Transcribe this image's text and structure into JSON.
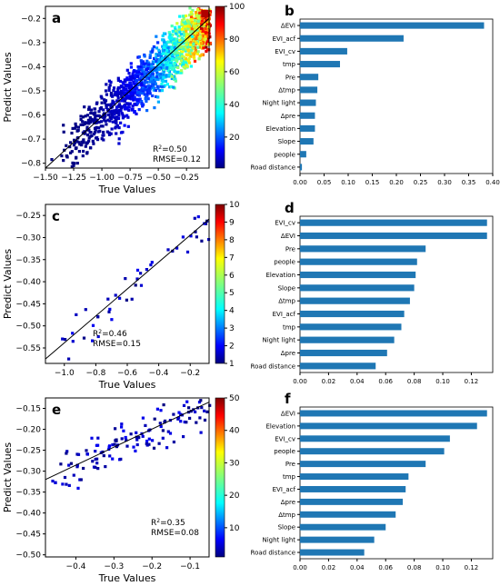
{
  "chart_data": [
    {
      "panel": "a",
      "type": "heatmap",
      "xlabel": "True Values",
      "ylabel": "Predict Values",
      "xlim": [
        -1.5,
        -0.05
      ],
      "ylim": [
        -0.82,
        -0.15
      ],
      "xticks": [
        -1.5,
        -1.25,
        -1.0,
        -0.75,
        -0.5,
        -0.25
      ],
      "xtick_labels": [
        "−1.50",
        "−1.25",
        "−1.00",
        "−0.75",
        "−0.50",
        "−0.25"
      ],
      "yticks": [
        -0.8,
        -0.7,
        -0.6,
        -0.5,
        -0.4,
        -0.3,
        -0.2
      ],
      "ytick_labels": [
        "−0.8",
        "−0.7",
        "−0.6",
        "−0.5",
        "−0.4",
        "−0.3",
        "−0.2"
      ],
      "r2_prefix": "R",
      "r2_sup": "2",
      "r2_value": "=0.50",
      "rmse_text": "RMSE=0.12",
      "fit_line": [
        [
          -1.5,
          -0.82
        ],
        [
          -0.05,
          -0.2
        ]
      ],
      "colorbar_range": [
        1,
        100
      ],
      "colorbar_ticks": [
        20,
        40,
        60,
        80,
        100
      ],
      "density_seed": 11,
      "density_count": 1500
    },
    {
      "panel": "b",
      "type": "bar",
      "categories": [
        "ΔEVI",
        "EVI_acf",
        "EVI_cv",
        "tmp",
        "Pre",
        "Δtmp",
        "Night light",
        "Δpre",
        "Elevation",
        "Slope",
        "people",
        "Road distance"
      ],
      "values": [
        0.382,
        0.215,
        0.098,
        0.083,
        0.038,
        0.036,
        0.033,
        0.031,
        0.031,
        0.028,
        0.013,
        0.004
      ],
      "xlim": [
        0,
        0.4
      ],
      "xticks": [
        0.0,
        0.05,
        0.1,
        0.15,
        0.2,
        0.25,
        0.3,
        0.35,
        0.4
      ],
      "xtick_labels": [
        "0.00",
        "0.05",
        "0.10",
        "0.15",
        "0.20",
        "0.25",
        "0.30",
        "0.35",
        "0.40"
      ],
      "color": "#1f77b4"
    },
    {
      "panel": "c",
      "type": "heatmap",
      "xlabel": "True Values",
      "ylabel": "Predict Values",
      "xlim": [
        -1.12,
        -0.08
      ],
      "ylim": [
        -0.585,
        -0.225
      ],
      "xticks": [
        -1.0,
        -0.8,
        -0.6,
        -0.4,
        -0.2
      ],
      "xtick_labels": [
        "−1.0",
        "−0.8",
        "−0.6",
        "−0.4",
        "−0.2"
      ],
      "yticks": [
        -0.55,
        -0.5,
        -0.45,
        -0.4,
        -0.35,
        -0.3,
        -0.25
      ],
      "ytick_labels": [
        "−0.55",
        "−0.50",
        "−0.45",
        "−0.40",
        "−0.35",
        "−0.30",
        "−0.25"
      ],
      "r2_prefix": "R",
      "r2_sup": "2",
      "r2_value": "=0.46",
      "rmse_text": "RMSE=0.15",
      "fit_line": [
        [
          -1.12,
          -0.575
        ],
        [
          -0.08,
          -0.258
        ]
      ],
      "colorbar_range": [
        1,
        10
      ],
      "colorbar_ticks": [
        1,
        2,
        3,
        4,
        5,
        6,
        7,
        8,
        9,
        10
      ],
      "density_seed": 23,
      "density_count": 45
    },
    {
      "panel": "d",
      "type": "bar",
      "categories": [
        "EVI_cv",
        "ΔEVI",
        "Pre",
        "people",
        "Elevation",
        "Slope",
        "Δtmp",
        "EVI_acf",
        "tmp",
        "Night light",
        "Δpre",
        "Road distance"
      ],
      "values": [
        0.131,
        0.131,
        0.088,
        0.082,
        0.081,
        0.08,
        0.077,
        0.073,
        0.071,
        0.066,
        0.061,
        0.053
      ],
      "xlim": [
        0,
        0.135
      ],
      "xticks": [
        0.0,
        0.02,
        0.04,
        0.06,
        0.08,
        0.1,
        0.12
      ],
      "xtick_labels": [
        "0.00",
        "0.02",
        "0.04",
        "0.06",
        "0.08",
        "0.10",
        "0.12"
      ],
      "color": "#1f77b4"
    },
    {
      "panel": "e",
      "type": "heatmap",
      "xlabel": "True Values",
      "ylabel": "Predict Values",
      "xlim": [
        -0.48,
        -0.05
      ],
      "ylim": [
        -0.505,
        -0.125
      ],
      "xticks": [
        -0.4,
        -0.3,
        -0.2,
        -0.1
      ],
      "xtick_labels": [
        "−0.4",
        "−0.3",
        "−0.2",
        "−0.1"
      ],
      "yticks": [
        -0.5,
        -0.45,
        -0.4,
        -0.35,
        -0.3,
        -0.25,
        -0.2,
        -0.15
      ],
      "ytick_labels": [
        "−0.50",
        "−0.45",
        "−0.40",
        "−0.35",
        "−0.30",
        "−0.25",
        "−0.20",
        "−0.15"
      ],
      "r2_prefix": "R",
      "r2_sup": "2",
      "r2_value": "=0.35",
      "rmse_text": "RMSE=0.08",
      "fit_line": [
        [
          -0.48,
          -0.32
        ],
        [
          -0.05,
          -0.135
        ]
      ],
      "colorbar_range": [
        1,
        50
      ],
      "colorbar_ticks": [
        10,
        20,
        30,
        40,
        50
      ],
      "density_seed": 37,
      "density_count": 140
    },
    {
      "panel": "f",
      "type": "bar",
      "categories": [
        "ΔEVI",
        "Elevation",
        "EVI_cv",
        "people",
        "Pre",
        "tmp",
        "EVI_acf",
        "Δpre",
        "Δtmp",
        "Slope",
        "Night light",
        "Road distance"
      ],
      "values": [
        0.131,
        0.124,
        0.105,
        0.101,
        0.088,
        0.076,
        0.074,
        0.072,
        0.067,
        0.06,
        0.052,
        0.045
      ],
      "xlim": [
        0,
        0.135
      ],
      "xticks": [
        0.0,
        0.02,
        0.04,
        0.06,
        0.08,
        0.1,
        0.12
      ],
      "xtick_labels": [
        "0.00",
        "0.02",
        "0.04",
        "0.06",
        "0.08",
        "0.10",
        "0.12"
      ],
      "color": "#1f77b4"
    }
  ]
}
